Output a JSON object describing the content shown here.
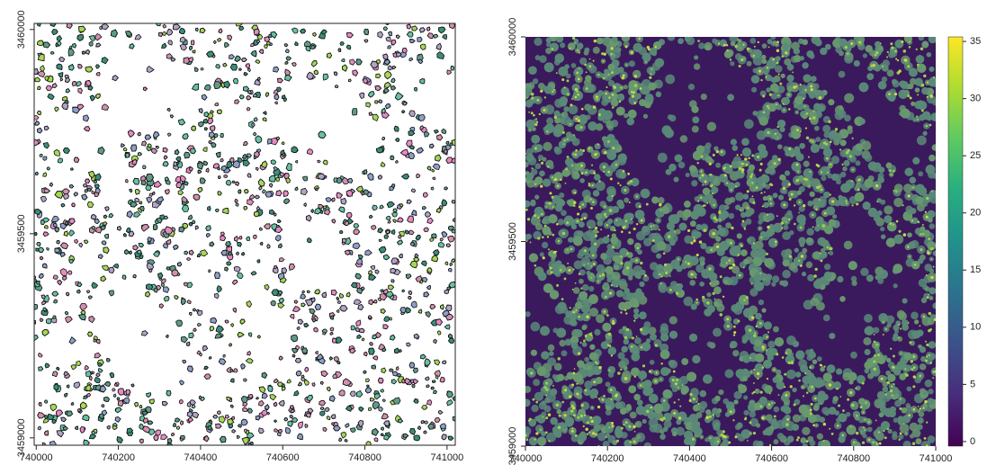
{
  "chart_data": [
    {
      "type": "polygons",
      "xlim": [
        739995,
        741020
      ],
      "ylim": [
        3458982,
        3460015
      ],
      "xticks": [
        740000,
        740200,
        740400,
        740600,
        740800,
        741000
      ],
      "yticks": [
        3459000,
        3459500,
        3460000
      ],
      "colors": [
        "#66c2a5",
        "#8da0cb",
        "#e78ac3",
        "#a6d854",
        "#5e9c8a",
        "#b3a2c7",
        "#3a8f7b",
        "#d48fb0"
      ]
    },
    {
      "type": "raster",
      "xlim": [
        740000,
        741000
      ],
      "ylim": [
        3459000,
        3460000
      ],
      "xticks": [
        740000,
        740200,
        740400,
        740600,
        740800,
        741000
      ],
      "yticks": [
        3459000,
        3459500,
        3460000
      ],
      "zlim": [
        -0.4,
        35.4
      ],
      "zticks": [
        0,
        5,
        10,
        15,
        20,
        25,
        30,
        35
      ],
      "colormap": [
        "#440154",
        "#472d7b",
        "#3b528b",
        "#2c728e",
        "#21918c",
        "#28ae80",
        "#5ec962",
        "#addc30",
        "#fde725"
      ]
    }
  ]
}
